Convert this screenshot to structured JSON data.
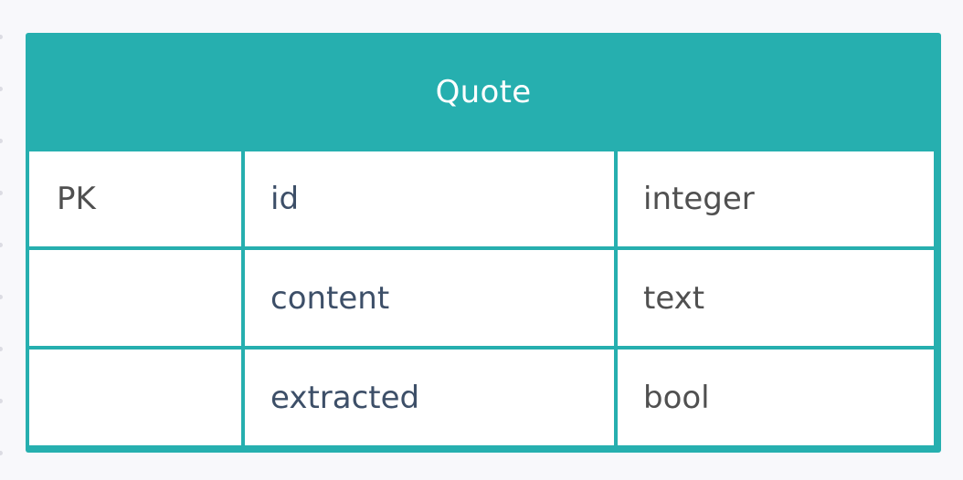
{
  "entity": {
    "name": "Quote",
    "rows": [
      {
        "key": "PK",
        "attribute": "id",
        "type": "integer"
      },
      {
        "key": "",
        "attribute": "content",
        "type": "text"
      },
      {
        "key": "",
        "attribute": "extracted",
        "type": "bool"
      }
    ]
  },
  "colors": {
    "header": "#26afaf",
    "background": "#f8f8fb",
    "attribute_text": "#3d4f68",
    "type_text": "#505050"
  }
}
